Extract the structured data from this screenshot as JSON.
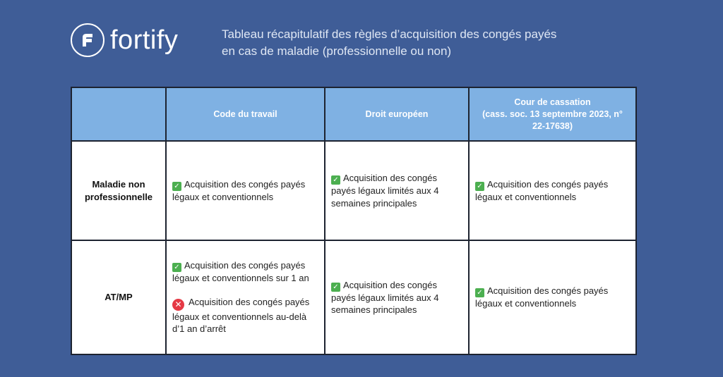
{
  "brand": {
    "name": "fortify"
  },
  "subtitle": {
    "line1": "Tableau récapitulatif des règles d’acquisition des congés payés",
    "line2": "en cas de maladie (professionnelle ou non)"
  },
  "table": {
    "headers": {
      "empty": "",
      "col1": "Code du travail",
      "col2": "Droit européen",
      "col3_line1": "Cour de cassation",
      "col3_line2": "(cass. soc. 13 septembre 2023, n° 22-17638)"
    },
    "rows": [
      {
        "label_line1": "Maladie non",
        "label_line2": "professionnelle",
        "code_travail": "Acquisition des congés payés légaux et conventionnels",
        "droit_europeen": "Acquisition des congés payés légaux limités aux 4 semaines principales",
        "cour_cassation": "Acquisition des congés payés légaux et conventionnels"
      },
      {
        "label": "AT/MP",
        "code_travail_yes": "Acquisition des congés payés légaux et conventionnels sur 1 an",
        "code_travail_no": "Acquisition des congés payés légaux et conventionnels au-delà d’1 an d’arrêt",
        "droit_europeen": "Acquisition des congés payés légaux limités aux 4 semaines principales",
        "cour_cassation": "Acquisition des congés payés légaux et conventionnels"
      }
    ]
  },
  "icons": {
    "yes": "check-mark-icon",
    "no": "cross-mark-icon"
  },
  "colors": {
    "background": "#3f5d97",
    "header": "#7fb1e3",
    "check": "#4caf50",
    "cross": "#e53945"
  }
}
